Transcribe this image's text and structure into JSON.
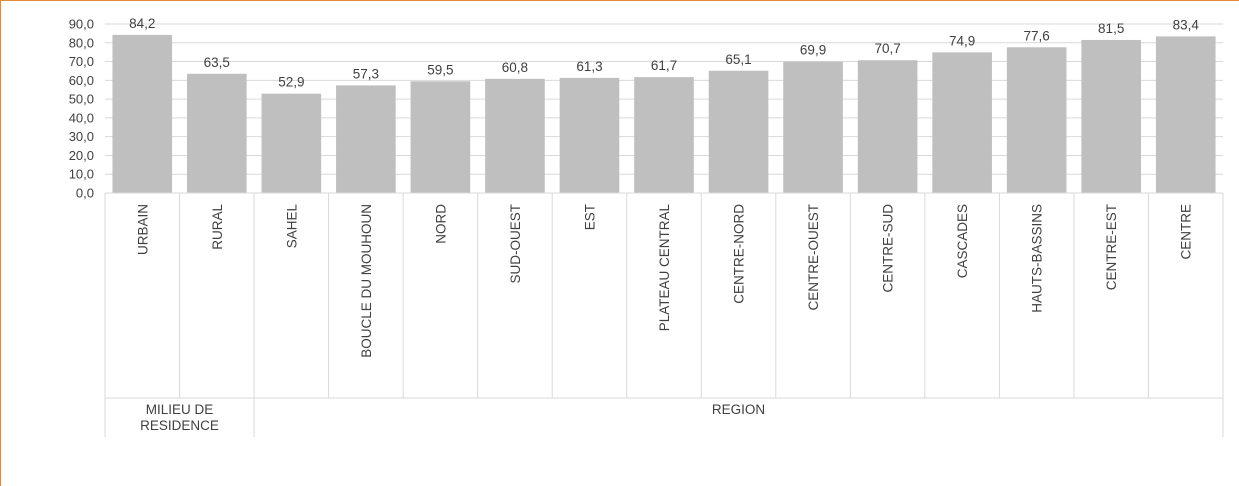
{
  "chart_data": {
    "type": "bar",
    "title": "",
    "xlabel": "",
    "ylabel": "",
    "ylim": [
      0,
      90
    ],
    "yticks": [
      "0,0",
      "10,0",
      "20,0",
      "30,0",
      "40,0",
      "50,0",
      "60,0",
      "70,0",
      "80,0",
      "90,0"
    ],
    "grid": true,
    "bar_color": "#bfbfbf",
    "categories": [
      "URBAIN",
      "RURAL",
      "SAHEL",
      "BOUCLE DU MOUHOUN",
      "NORD",
      "SUD-OUEST",
      "EST",
      "PLATEAU CENTRAL",
      "CENTRE-NORD",
      "CENTRE-OUEST",
      "CENTRE-SUD",
      "CASCADES",
      "HAUTS-BASSINS",
      "CENTRE-EST",
      "CENTRE"
    ],
    "values": [
      84.2,
      63.5,
      52.9,
      57.3,
      59.5,
      60.8,
      61.3,
      61.7,
      65.1,
      69.9,
      70.7,
      74.9,
      77.6,
      81.5,
      83.4
    ],
    "value_labels": [
      "84,2",
      "63,5",
      "52,9",
      "57,3",
      "59,5",
      "60,8",
      "61,3",
      "61,7",
      "65,1",
      "69,9",
      "70,7",
      "74,9",
      "77,6",
      "81,5",
      "83,4"
    ],
    "groups": [
      {
        "name_lines": [
          "MILIEU DE",
          "RESIDENCE"
        ],
        "start": 0,
        "end": 1
      },
      {
        "name_lines": [
          "REGION"
        ],
        "start": 2,
        "end": 14
      }
    ]
  }
}
